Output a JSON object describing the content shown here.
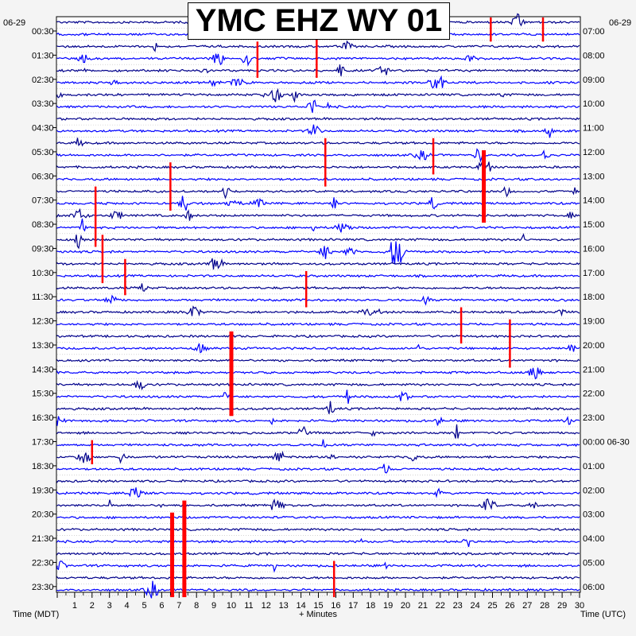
{
  "chart_data": {
    "type": "line",
    "title": "YMC EHZ WY 01",
    "left_date": "06-29",
    "right_date": "06-29",
    "right_date_change": "06-30",
    "xlabel": "+ Minutes",
    "left_axis_label": "Time (MDT)",
    "right_axis_label": "Time (UTC)",
    "xlim": [
      0,
      30
    ],
    "x_ticks": [
      "1",
      "2",
      "3",
      "4",
      "5",
      "6",
      "7",
      "8",
      "9",
      "10",
      "11",
      "12",
      "13",
      "14",
      "15",
      "16",
      "17",
      "18",
      "19",
      "20",
      "21",
      "22",
      "23",
      "24",
      "25",
      "26",
      "27",
      "28",
      "29",
      "30"
    ],
    "left_ticks": [
      "00:30",
      "01:30",
      "02:30",
      "03:30",
      "04:30",
      "05:30",
      "06:30",
      "07:30",
      "08:30",
      "09:30",
      "10:30",
      "11:30",
      "12:30",
      "13:30",
      "14:30",
      "15:30",
      "16:30",
      "17:30",
      "18:30",
      "19:30",
      "20:30",
      "21:30",
      "22:30",
      "23:30"
    ],
    "right_ticks": [
      "07:00",
      "08:00",
      "09:00",
      "10:00",
      "11:00",
      "12:00",
      "13:00",
      "14:00",
      "15:00",
      "16:00",
      "17:00",
      "18:00",
      "19:00",
      "20:00",
      "21:00",
      "22:00",
      "23:00",
      "00:00 06-30",
      "01:00",
      "02:00",
      "03:00",
      "04:00",
      "05:00",
      "06:00"
    ],
    "trace_count": 48,
    "trace_colors": [
      "#00008b",
      "#0000ff"
    ],
    "event_color": "#ff0000",
    "events": [
      {
        "minute": 2.2,
        "row": 14,
        "span": 5
      },
      {
        "minute": 2.6,
        "row": 18,
        "span": 4
      },
      {
        "minute": 3.9,
        "row": 20,
        "span": 3
      },
      {
        "minute": 6.5,
        "row": 12,
        "span": 4
      },
      {
        "minute": 10.0,
        "row": 26,
        "span": 7
      },
      {
        "minute": 11.5,
        "row": 2,
        "span": 3
      },
      {
        "minute": 14.9,
        "row": 1,
        "span": 4
      },
      {
        "minute": 15.4,
        "row": 10,
        "span": 4
      },
      {
        "minute": 21.6,
        "row": 10,
        "span": 3
      },
      {
        "minute": 23.2,
        "row": 24,
        "span": 3
      },
      {
        "minute": 24.5,
        "row": 11,
        "span": 6
      },
      {
        "minute": 26.0,
        "row": 25,
        "span": 4
      },
      {
        "minute": 6.6,
        "row": 41,
        "span": 7
      },
      {
        "minute": 7.3,
        "row": 40,
        "span": 8
      },
      {
        "minute": 2.0,
        "row": 35,
        "span": 2
      },
      {
        "minute": 15.9,
        "row": 45,
        "span": 3
      },
      {
        "minute": 27.9,
        "row": 0,
        "span": 2
      },
      {
        "minute": 24.9,
        "row": 0,
        "span": 2
      },
      {
        "minute": 14.3,
        "row": 21,
        "span": 3
      }
    ]
  }
}
